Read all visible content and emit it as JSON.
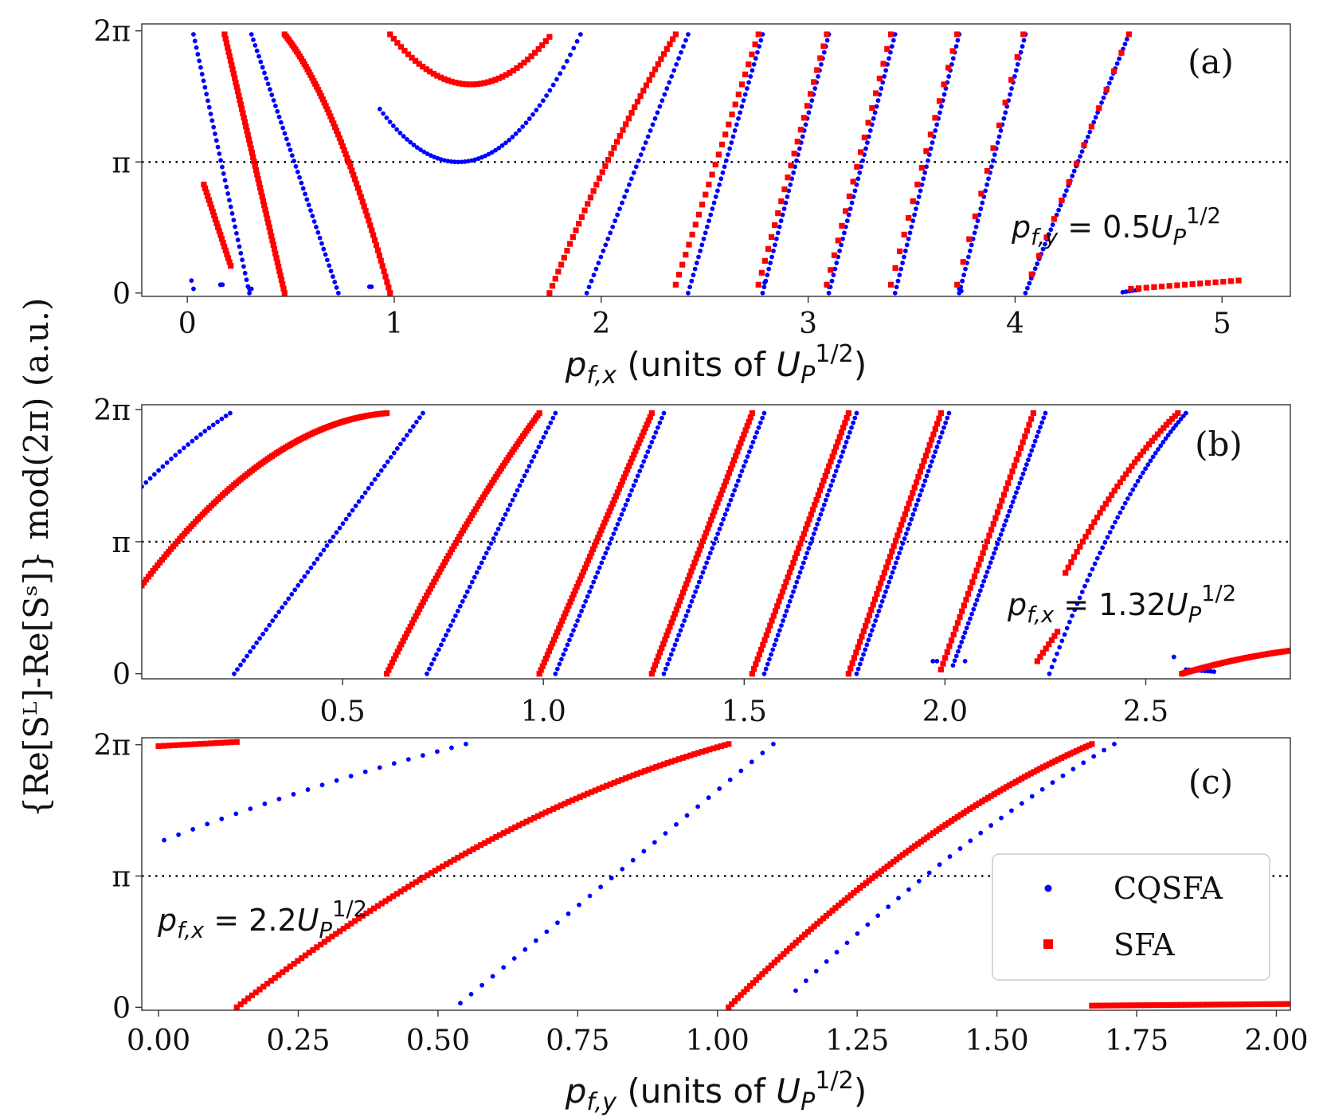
{
  "figure": {
    "ylabel": "{Re[Sᴸ]-Re[Sˢ]} mod(2π) (a.u.)",
    "legend": [
      {
        "label": "CQSFA",
        "color": "#0000ff",
        "marker": "circle"
      },
      {
        "label": "SFA",
        "color": "#ff0000",
        "marker": "square"
      }
    ]
  },
  "chart_data": [
    {
      "type": "scatter",
      "panel": "(a)",
      "xlabel": "p_f,x (units of U_P^1/2)",
      "annotation": "p_f,y = 0.5U_P^1/2",
      "xlim": [
        -0.22,
        5.33
      ],
      "ylim": [
        -0.08,
        6.45
      ],
      "xticks": [
        0,
        1,
        2,
        3,
        4,
        5
      ],
      "xtick_labels": [
        "0",
        "1",
        "2",
        "3",
        "4",
        "5"
      ],
      "yticks": [
        0,
        3.1416,
        6.2832
      ],
      "ytick_labels": [
        "0",
        "π",
        "2π"
      ],
      "reference_line": 3.1416,
      "series": [
        {
          "name": "CQSFA",
          "color": "#0000ff",
          "segments": [
            {
              "kind": "line",
              "x0": 0.03,
              "y0": 6.2,
              "x1": 0.3,
              "y1": 0.0,
              "n": 40
            },
            {
              "kind": "line",
              "x0": 0.31,
              "y0": 6.2,
              "x1": 0.73,
              "y1": 0.0,
              "n": 48
            },
            {
              "kind": "parabola",
              "xa": 0.93,
              "xb": 1.9,
              "xv": 1.31,
              "yv": 3.14,
              "yend": 6.2,
              "n": 60
            },
            {
              "kind": "line",
              "x0": 1.93,
              "y0": 0.0,
              "x1": 2.42,
              "y1": 6.2,
              "n": 44
            },
            {
              "kind": "line",
              "x0": 2.42,
              "y0": 0.0,
              "x1": 2.78,
              "y1": 6.2,
              "n": 44
            },
            {
              "kind": "line",
              "x0": 2.78,
              "y0": 0.0,
              "x1": 3.1,
              "y1": 6.2,
              "n": 44
            },
            {
              "kind": "line",
              "x0": 3.1,
              "y0": 0.0,
              "x1": 3.42,
              "y1": 6.2,
              "n": 44
            },
            {
              "kind": "line",
              "x0": 3.42,
              "y0": 0.0,
              "x1": 3.73,
              "y1": 6.2,
              "n": 44
            },
            {
              "kind": "line",
              "x0": 3.73,
              "y0": 0.0,
              "x1": 4.05,
              "y1": 6.2,
              "n": 44
            },
            {
              "kind": "line",
              "x0": 4.05,
              "y0": 0.0,
              "x1": 4.55,
              "y1": 6.2,
              "n": 54
            },
            {
              "kind": "line",
              "x0": 4.52,
              "y0": 0.02,
              "x1": 4.6,
              "y1": 0.08,
              "n": 6
            },
            {
              "kind": "points",
              "x": [
                0.02,
                0.03,
                0.16,
                0.17,
                0.3,
                0.31,
                0.88,
                0.89,
                2.79,
                3.1,
                3.73,
                3.74
              ],
              "y": [
                0.3,
                0.1,
                0.2,
                0.2,
                0.1,
                0.1,
                0.15,
                0.15,
                0.25,
                0.15,
                0.1,
                0.05
              ]
            }
          ]
        },
        {
          "name": "SFA",
          "color": "#ff0000",
          "segments": [
            {
              "kind": "line",
              "x0": 0.08,
              "y0": 2.6,
              "x1": 0.21,
              "y1": 0.65,
              "n": 22
            },
            {
              "kind": "line",
              "x0": 0.18,
              "y0": 6.2,
              "x1": 0.47,
              "y1": 0.0,
              "n": 60
            },
            {
              "kind": "curve",
              "x0": 0.47,
              "y0": 6.2,
              "x1": 0.98,
              "y1": 0.0,
              "bend": 0.12,
              "n": 70
            },
            {
              "kind": "parabola",
              "xa": 0.98,
              "xb": 1.75,
              "xv": 1.37,
              "yv": 5.0,
              "yend": 6.2,
              "n": 45
            },
            {
              "kind": "curve",
              "x0": 1.75,
              "y0": 0.0,
              "x1": 2.36,
              "y1": 6.2,
              "bend": -0.05,
              "n": 44
            },
            {
              "kind": "line",
              "x0": 2.36,
              "y0": 0.2,
              "x1": 2.76,
              "y1": 6.2,
              "n": 26
            },
            {
              "kind": "line",
              "x0": 2.76,
              "y0": 0.2,
              "x1": 3.09,
              "y1": 6.2,
              "n": 22
            },
            {
              "kind": "line",
              "x0": 3.09,
              "y0": 0.2,
              "x1": 3.4,
              "y1": 6.2,
              "n": 18
            },
            {
              "kind": "line",
              "x0": 3.4,
              "y0": 0.2,
              "x1": 3.72,
              "y1": 6.2,
              "n": 16
            },
            {
              "kind": "line",
              "x0": 3.72,
              "y0": 0.2,
              "x1": 4.04,
              "y1": 6.2,
              "n": 12
            },
            {
              "kind": "line",
              "x0": 4.08,
              "y0": 0.45,
              "x1": 4.55,
              "y1": 6.2,
              "n": 14
            },
            {
              "kind": "line",
              "x0": 4.56,
              "y0": 0.1,
              "x1": 5.08,
              "y1": 0.3,
              "n": 15
            }
          ]
        }
      ]
    },
    {
      "type": "scatter",
      "panel": "(b)",
      "xlabel": "",
      "annotation": "p_f,x = 1.32U_P^1/2",
      "xlim": [
        0.0,
        2.86
      ],
      "ylim": [
        -0.12,
        6.4
      ],
      "xticks": [
        0.5,
        1.0,
        1.5,
        2.0,
        2.5
      ],
      "xtick_labels": [
        "0.5",
        "1.0",
        "1.5",
        "2.0",
        "2.5"
      ],
      "yticks": [
        0,
        3.1416,
        6.2832
      ],
      "ytick_labels": [
        "0",
        "π",
        "2π"
      ],
      "reference_line": 3.1416,
      "series": [
        {
          "name": "CQSFA",
          "color": "#0000ff",
          "segments": [
            {
              "kind": "curve",
              "x0": 0.0,
              "y0": 4.45,
              "x1": 0.22,
              "y1": 6.2,
              "bend": -0.05,
              "n": 22
            },
            {
              "kind": "curve",
              "x0": 0.23,
              "y0": 0.0,
              "x1": 0.7,
              "y1": 6.2,
              "bend": 0.0,
              "n": 60
            },
            {
              "kind": "line",
              "x0": 0.71,
              "y0": 0.0,
              "x1": 1.03,
              "y1": 6.2,
              "n": 55
            },
            {
              "kind": "line",
              "x0": 1.03,
              "y0": 0.0,
              "x1": 1.3,
              "y1": 6.2,
              "n": 55
            },
            {
              "kind": "line",
              "x0": 1.3,
              "y0": 0.0,
              "x1": 1.55,
              "y1": 6.2,
              "n": 55
            },
            {
              "kind": "line",
              "x0": 1.55,
              "y0": 0.0,
              "x1": 1.78,
              "y1": 6.2,
              "n": 55
            },
            {
              "kind": "line",
              "x0": 1.78,
              "y0": 0.0,
              "x1": 2.01,
              "y1": 6.2,
              "n": 55
            },
            {
              "kind": "line",
              "x0": 2.02,
              "y0": 0.2,
              "x1": 2.25,
              "y1": 6.2,
              "n": 55
            },
            {
              "kind": "curve",
              "x0": 2.26,
              "y0": 0.0,
              "x1": 2.6,
              "y1": 6.2,
              "bend": -0.1,
              "n": 55
            },
            {
              "kind": "line",
              "x0": 2.6,
              "y0": 0.1,
              "x1": 2.67,
              "y1": 0.05,
              "n": 10
            },
            {
              "kind": "points",
              "x": [
                1.97,
                1.98,
                2.05,
                2.57
              ],
              "y": [
                0.3,
                0.3,
                0.3,
                0.4
              ]
            }
          ]
        },
        {
          "name": "SFA",
          "color": "#ff0000",
          "segments": [
            {
              "kind": "curve",
              "x0": 0.0,
              "y0": 2.1,
              "x1": 0.61,
              "y1": 6.2,
              "bend": -0.22,
              "n": 110
            },
            {
              "kind": "curve",
              "x0": 0.61,
              "y0": 0.0,
              "x1": 0.99,
              "y1": 6.2,
              "bend": -0.05,
              "n": 85
            },
            {
              "kind": "line",
              "x0": 0.99,
              "y0": 0.0,
              "x1": 1.27,
              "y1": 6.2,
              "n": 70
            },
            {
              "kind": "line",
              "x0": 1.27,
              "y0": 0.0,
              "x1": 1.52,
              "y1": 6.2,
              "n": 62
            },
            {
              "kind": "line",
              "x0": 1.52,
              "y0": 0.0,
              "x1": 1.76,
              "y1": 6.2,
              "n": 55
            },
            {
              "kind": "line",
              "x0": 1.76,
              "y0": 0.0,
              "x1": 1.99,
              "y1": 6.2,
              "n": 50
            },
            {
              "kind": "line",
              "x0": 1.99,
              "y0": 0.1,
              "x1": 2.22,
              "y1": 6.2,
              "n": 45
            },
            {
              "kind": "line",
              "x0": 2.23,
              "y0": 0.3,
              "x1": 2.28,
              "y1": 1.0,
              "n": 8
            },
            {
              "kind": "curve",
              "x0": 2.3,
              "y0": 2.4,
              "x1": 2.58,
              "y1": 6.2,
              "bend": -0.08,
              "n": 40
            },
            {
              "kind": "curve",
              "x0": 2.59,
              "y0": 0.0,
              "x1": 2.86,
              "y1": 0.55,
              "bend": -0.1,
              "n": 45
            }
          ]
        }
      ]
    },
    {
      "type": "scatter",
      "panel": "(c)",
      "xlabel": "p_f,y (units of U_P^1/2)",
      "annotation": "p_f,x = 2.2U_P^1/2",
      "xlim": [
        -0.03,
        2.025
      ],
      "ylim": [
        -0.07,
        6.45
      ],
      "xticks": [
        0.0,
        0.25,
        0.5,
        0.75,
        1.0,
        1.25,
        1.5,
        1.75,
        2.0
      ],
      "xtick_labels": [
        "0.00",
        "0.25",
        "0.50",
        "0.75",
        "1.00",
        "1.25",
        "1.50",
        "1.75",
        "2.00"
      ],
      "yticks": [
        0,
        3.1416,
        6.2832
      ],
      "ytick_labels": [
        "0",
        "π",
        "2π"
      ],
      "reference_line": 3.1416,
      "series": [
        {
          "name": "CQSFA",
          "color": "#0000ff",
          "segments": [
            {
              "kind": "curve",
              "x0": 0.01,
              "y0": 4.0,
              "x1": 0.55,
              "y1": 6.3,
              "bend": -0.05,
              "n": 22
            },
            {
              "kind": "line",
              "x0": 0.54,
              "y0": 0.1,
              "x1": 1.1,
              "y1": 6.3,
              "n": 30
            },
            {
              "kind": "curve",
              "x0": 1.14,
              "y0": 0.4,
              "x1": 1.71,
              "y1": 6.3,
              "bend": -0.06,
              "n": 32
            }
          ]
        },
        {
          "name": "SFA",
          "color": "#ff0000",
          "segments": [
            {
              "kind": "curve",
              "x0": 0.0,
              "y0": 6.25,
              "x1": 0.14,
              "y1": 6.35,
              "bend": 0.0,
              "n": 16
            },
            {
              "kind": "curve",
              "x0": 0.14,
              "y0": 0.0,
              "x1": 1.02,
              "y1": 6.3,
              "bend": -0.12,
              "n": 130
            },
            {
              "kind": "curve",
              "x0": 1.02,
              "y0": 0.0,
              "x1": 1.67,
              "y1": 6.3,
              "bend": -0.1,
              "n": 120
            },
            {
              "kind": "curve",
              "x0": 1.67,
              "y0": 0.04,
              "x1": 2.02,
              "y1": 0.08,
              "bend": 0.0,
              "n": 45
            }
          ]
        }
      ]
    }
  ]
}
